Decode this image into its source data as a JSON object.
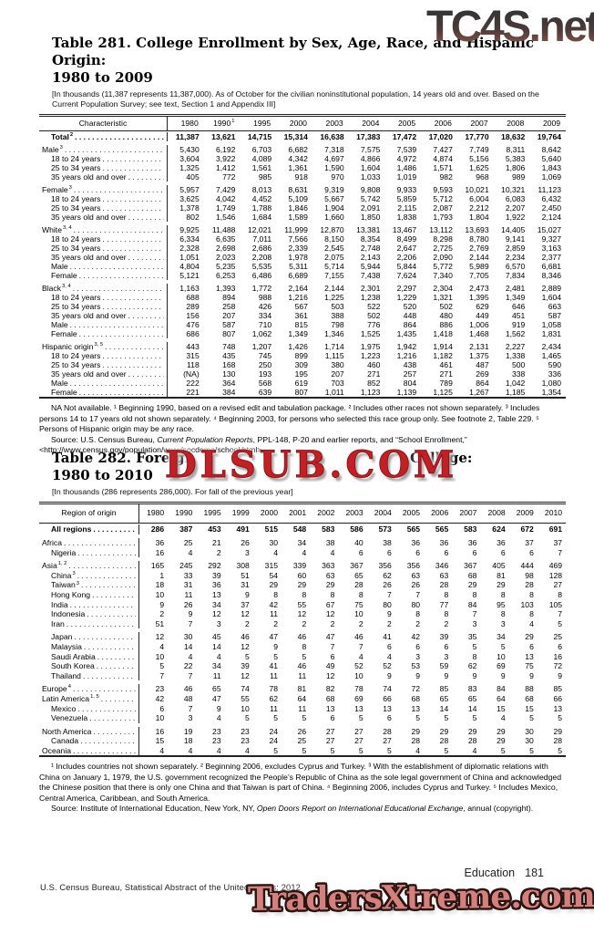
{
  "watermarks": {
    "top": "TC4S.net",
    "middle": "DLSUB.COM",
    "bottom": "TradersXtreme.com"
  },
  "footer": {
    "page_label": "Education",
    "page_number": "181",
    "source_line": "U.S. Census Bureau, Statistical Abstract of the United States: 2012"
  },
  "table281": {
    "title_line1": "Table 281. College Enrollment by Sex, Age, Race, and Hispanic Origin:",
    "title_line2": "1980 to 2009",
    "note": "[In thousands (11,387 represents 11,387,000). As of October for the civilian noninstitutional population, 14 years old and over. Based on the Current Population Survey; see text, Section 1 and Appendix III]",
    "header_label": "Characteristic",
    "years": [
      {
        "label": "1980"
      },
      {
        "label": "1990",
        "sup": "1"
      },
      {
        "label": "1995"
      },
      {
        "label": "2000"
      },
      {
        "label": "2003"
      },
      {
        "label": "2004"
      },
      {
        "label": "2005"
      },
      {
        "label": "2006"
      },
      {
        "label": "2007"
      },
      {
        "label": "2008"
      },
      {
        "label": "2009"
      }
    ],
    "rows": [
      {
        "label": "Total",
        "sup": "2",
        "bold": true,
        "indent": true,
        "values": [
          "11,387",
          "13,621",
          "14,715",
          "15,314",
          "16,638",
          "17,383",
          "17,472",
          "17,020",
          "17,770",
          "18,632",
          "19,764"
        ]
      },
      {
        "label": "Male",
        "sup": "3",
        "gap": true,
        "values": [
          "5,430",
          "6,192",
          "6,703",
          "6,682",
          "7,318",
          "7,575",
          "7,539",
          "7,427",
          "7,749",
          "8,311",
          "8,642"
        ]
      },
      {
        "label": "18 to 24 years",
        "indent": true,
        "values": [
          "3,604",
          "3,922",
          "4,089",
          "4,342",
          "4,697",
          "4,866",
          "4,972",
          "4,874",
          "5,156",
          "5,383",
          "5,640"
        ]
      },
      {
        "label": "25 to 34 years",
        "indent": true,
        "values": [
          "1,325",
          "1,412",
          "1,561",
          "1,361",
          "1,590",
          "1,604",
          "1,486",
          "1,571",
          "1,625",
          "1,806",
          "1,843"
        ]
      },
      {
        "label": "35 years old and over",
        "indent": true,
        "values": [
          "405",
          "772",
          "985",
          "918",
          "970",
          "1,033",
          "1,019",
          "982",
          "968",
          "989",
          "1,069"
        ]
      },
      {
        "label": "Female",
        "sup": "3",
        "gap": true,
        "values": [
          "5,957",
          "7,429",
          "8,013",
          "8,631",
          "9,319",
          "9,808",
          "9,933",
          "9,593",
          "10,021",
          "10,321",
          "11,123"
        ]
      },
      {
        "label": "18 to 24 years",
        "indent": true,
        "values": [
          "3,625",
          "4,042",
          "4,452",
          "5,109",
          "5,667",
          "5,742",
          "5,859",
          "5,712",
          "6,004",
          "6,083",
          "6,432"
        ]
      },
      {
        "label": "25 to 34 years",
        "indent": true,
        "values": [
          "1,378",
          "1,749",
          "1,788",
          "1,846",
          "1,904",
          "2,091",
          "2,115",
          "2,087",
          "2,212",
          "2,207",
          "2,450"
        ]
      },
      {
        "label": "35 years old and over",
        "indent": true,
        "values": [
          "802",
          "1,546",
          "1,684",
          "1,589",
          "1,660",
          "1,850",
          "1,838",
          "1,793",
          "1,804",
          "1,922",
          "2,124"
        ]
      },
      {
        "label": "White",
        "sup": "3, 4",
        "gap": true,
        "values": [
          "9,925",
          "11,488",
          "12,021",
          "11,999",
          "12,870",
          "13,381",
          "13,467",
          "13,112",
          "13,693",
          "14,405",
          "15,027"
        ]
      },
      {
        "label": "18 to 24 years",
        "indent": true,
        "values": [
          "6,334",
          "6,635",
          "7,011",
          "7,566",
          "8,150",
          "8,354",
          "8,499",
          "8,298",
          "8,780",
          "9,141",
          "9,327"
        ]
      },
      {
        "label": "25 to 34 years",
        "indent": true,
        "values": [
          "2,328",
          "2,698",
          "2,686",
          "2,339",
          "2,545",
          "2,748",
          "2,647",
          "2,725",
          "2,769",
          "2,859",
          "3,163"
        ]
      },
      {
        "label": "35 years old and over",
        "indent": true,
        "values": [
          "1,051",
          "2,023",
          "2,208",
          "1,978",
          "2,075",
          "2,143",
          "2,206",
          "2,090",
          "2,144",
          "2,234",
          "2,377"
        ]
      },
      {
        "label": "Male",
        "indent": true,
        "values": [
          "4,804",
          "5,235",
          "5,535",
          "5,311",
          "5,714",
          "5,944",
          "5,844",
          "5,772",
          "5,989",
          "6,570",
          "6,681"
        ]
      },
      {
        "label": "Female",
        "indent": true,
        "values": [
          "5,121",
          "6,253",
          "6,486",
          "6,689",
          "7,155",
          "7,438",
          "7,624",
          "7,340",
          "7,705",
          "7,834",
          "8,346"
        ]
      },
      {
        "label": "Black",
        "sup": "3, 4",
        "gap": true,
        "values": [
          "1,163",
          "1,393",
          "1,772",
          "2,164",
          "2,144",
          "2,301",
          "2,297",
          "2,304",
          "2,473",
          "2,481",
          "2,889"
        ]
      },
      {
        "label": "18 to 24 years",
        "indent": true,
        "values": [
          "688",
          "894",
          "988",
          "1,216",
          "1,225",
          "1,238",
          "1,229",
          "1,321",
          "1,395",
          "1,349",
          "1,604"
        ]
      },
      {
        "label": "25 to 34 years",
        "indent": true,
        "values": [
          "289",
          "258",
          "426",
          "567",
          "503",
          "522",
          "520",
          "502",
          "629",
          "646",
          "663"
        ]
      },
      {
        "label": "35 years old and over",
        "indent": true,
        "values": [
          "156",
          "207",
          "334",
          "361",
          "388",
          "502",
          "448",
          "480",
          "449",
          "451",
          "587"
        ]
      },
      {
        "label": "Male",
        "indent": true,
        "values": [
          "476",
          "587",
          "710",
          "815",
          "798",
          "776",
          "864",
          "886",
          "1,006",
          "919",
          "1,058"
        ]
      },
      {
        "label": "Female",
        "indent": true,
        "values": [
          "686",
          "807",
          "1,062",
          "1,349",
          "1,346",
          "1,525",
          "1,435",
          "1,418",
          "1,468",
          "1,562",
          "1,831"
        ]
      },
      {
        "label": "Hispanic origin",
        "sup": "3, 5",
        "gap": true,
        "values": [
          "443",
          "748",
          "1,207",
          "1,426",
          "1,714",
          "1,975",
          "1,942",
          "1,914",
          "2,131",
          "2,227",
          "2,434"
        ]
      },
      {
        "label": "18 to 24 years",
        "indent": true,
        "values": [
          "315",
          "435",
          "745",
          "899",
          "1,115",
          "1,223",
          "1,216",
          "1,182",
          "1,375",
          "1,338",
          "1,465"
        ]
      },
      {
        "label": "25 to 34 years",
        "indent": true,
        "values": [
          "118",
          "168",
          "250",
          "309",
          "380",
          "460",
          "438",
          "461",
          "487",
          "500",
          "590"
        ]
      },
      {
        "label": "35 years old and over",
        "indent": true,
        "values": [
          "(NA)",
          "130",
          "193",
          "195",
          "207",
          "271",
          "257",
          "271",
          "269",
          "338",
          "336"
        ]
      },
      {
        "label": "Male",
        "indent": true,
        "values": [
          "222",
          "364",
          "568",
          "619",
          "703",
          "852",
          "804",
          "789",
          "864",
          "1,042",
          "1,080"
        ]
      },
      {
        "label": "Female",
        "indent": true,
        "values": [
          "221",
          "384",
          "639",
          "807",
          "1,011",
          "1,123",
          "1,139",
          "1,125",
          "1,267",
          "1,185",
          "1,354"
        ]
      }
    ],
    "footnote": "NA Not available. ¹ Beginning 1990, based on a revised edit and tabulation package. ² Includes other races not shown separately. ³ Includes persons 14 to 17 years old not shown separately. ⁴ Beginning 2003, for persons who selected this race group only. See footnote 2, Table 229. ⁵ Persons of Hispanic origin may be any race.",
    "source_pre": "Source: U.S. Census Bureau, ",
    "source_italic": "Current Population Reports",
    "source_post": ", PPL-148, P-20 and earlier reports, and “School Enrollment,” <http://www.census.gov/population/www/socdemo/school.html>."
  },
  "table282": {
    "title_line1_left": "Table 282. Foreign",
    "title_line1_right": "College:",
    "title_line2": "1980 to 2010",
    "note": "[In thousands (286 represents 286,000). For fall of the previous year]",
    "header_label": "Region of origin",
    "years": [
      {
        "label": "1980"
      },
      {
        "label": "1990"
      },
      {
        "label": "1995"
      },
      {
        "label": "1999"
      },
      {
        "label": "2000"
      },
      {
        "label": "2001"
      },
      {
        "label": "2002"
      },
      {
        "label": "2003"
      },
      {
        "label": "2004"
      },
      {
        "label": "2005"
      },
      {
        "label": "2006"
      },
      {
        "label": "2007"
      },
      {
        "label": "2008"
      },
      {
        "label": "2009"
      },
      {
        "label": "2010"
      }
    ],
    "rows": [
      {
        "label": "All regions",
        "bold": true,
        "indent": true,
        "values": [
          "286",
          "387",
          "453",
          "491",
          "515",
          "548",
          "583",
          "586",
          "573",
          "565",
          "565",
          "583",
          "624",
          "672",
          "691"
        ]
      },
      {
        "label": "Africa",
        "gap": true,
        "values": [
          "36",
          "25",
          "21",
          "26",
          "30",
          "34",
          "38",
          "40",
          "38",
          "36",
          "36",
          "36",
          "36",
          "37",
          "37"
        ]
      },
      {
        "label": "Nigeria",
        "indent": true,
        "values": [
          "16",
          "4",
          "2",
          "3",
          "4",
          "4",
          "4",
          "6",
          "6",
          "6",
          "6",
          "6",
          "6",
          "6",
          "7"
        ]
      },
      {
        "label": "Asia",
        "sup": "1, 2",
        "gap": true,
        "values": [
          "165",
          "245",
          "292",
          "308",
          "315",
          "339",
          "363",
          "367",
          "356",
          "356",
          "346",
          "367",
          "405",
          "444",
          "469"
        ]
      },
      {
        "label": "China",
        "sup": "3",
        "indent": true,
        "values": [
          "1",
          "33",
          "39",
          "51",
          "54",
          "60",
          "63",
          "65",
          "62",
          "63",
          "63",
          "68",
          "81",
          "98",
          "128"
        ]
      },
      {
        "label": "Taiwan",
        "sup": "3",
        "indent": true,
        "values": [
          "18",
          "31",
          "36",
          "31",
          "29",
          "29",
          "29",
          "28",
          "26",
          "26",
          "28",
          "29",
          "29",
          "28",
          "27"
        ]
      },
      {
        "label": "Hong Kong",
        "indent": true,
        "values": [
          "10",
          "11",
          "13",
          "9",
          "8",
          "8",
          "8",
          "8",
          "7",
          "7",
          "8",
          "8",
          "8",
          "8",
          "8"
        ]
      },
      {
        "label": "India",
        "indent": true,
        "values": [
          "9",
          "26",
          "34",
          "37",
          "42",
          "55",
          "67",
          "75",
          "80",
          "80",
          "77",
          "84",
          "95",
          "103",
          "105"
        ]
      },
      {
        "label": "Indonesia",
        "indent": true,
        "values": [
          "2",
          "9",
          "12",
          "12",
          "11",
          "12",
          "12",
          "10",
          "9",
          "8",
          "8",
          "7",
          "8",
          "8",
          "7"
        ]
      },
      {
        "label": "Iran",
        "indent": true,
        "values": [
          "51",
          "7",
          "3",
          "2",
          "2",
          "2",
          "2",
          "2",
          "2",
          "2",
          "2",
          "3",
          "3",
          "4",
          "5"
        ]
      },
      {
        "label": "Japan",
        "indent": true,
        "gap": true,
        "values": [
          "12",
          "30",
          "45",
          "46",
          "47",
          "46",
          "47",
          "46",
          "41",
          "42",
          "39",
          "35",
          "34",
          "29",
          "25"
        ]
      },
      {
        "label": "Malaysia",
        "indent": true,
        "values": [
          "4",
          "14",
          "14",
          "12",
          "9",
          "8",
          "7",
          "7",
          "6",
          "6",
          "6",
          "5",
          "5",
          "6",
          "6"
        ]
      },
      {
        "label": "Saudi Arabia",
        "indent": true,
        "values": [
          "10",
          "4",
          "4",
          "5",
          "5",
          "5",
          "6",
          "4",
          "4",
          "3",
          "3",
          "8",
          "10",
          "13",
          "16"
        ]
      },
      {
        "label": "South Korea",
        "indent": true,
        "values": [
          "5",
          "22",
          "34",
          "39",
          "41",
          "46",
          "49",
          "52",
          "52",
          "53",
          "59",
          "62",
          "69",
          "75",
          "72"
        ]
      },
      {
        "label": "Thailand",
        "indent": true,
        "values": [
          "7",
          "7",
          "11",
          "12",
          "11",
          "11",
          "12",
          "10",
          "9",
          "9",
          "9",
          "9",
          "9",
          "9",
          "9"
        ]
      },
      {
        "label": "Europe",
        "sup": "4",
        "gap": true,
        "values": [
          "23",
          "46",
          "65",
          "74",
          "78",
          "81",
          "82",
          "78",
          "74",
          "72",
          "85",
          "83",
          "84",
          "88",
          "85"
        ]
      },
      {
        "label": "Latin America",
        "sup": "1, 5",
        "values": [
          "42",
          "48",
          "47",
          "55",
          "62",
          "64",
          "68",
          "69",
          "66",
          "68",
          "65",
          "65",
          "64",
          "68",
          "66"
        ]
      },
      {
        "label": "Mexico",
        "indent": true,
        "values": [
          "6",
          "7",
          "9",
          "10",
          "11",
          "11",
          "13",
          "13",
          "13",
          "13",
          "14",
          "14",
          "15",
          "15",
          "13"
        ]
      },
      {
        "label": "Venezuela",
        "indent": true,
        "values": [
          "10",
          "3",
          "4",
          "5",
          "5",
          "5",
          "6",
          "5",
          "6",
          "5",
          "5",
          "5",
          "4",
          "5",
          "5"
        ]
      },
      {
        "label": "North America",
        "gap": true,
        "values": [
          "16",
          "19",
          "23",
          "23",
          "24",
          "26",
          "27",
          "27",
          "28",
          "29",
          "29",
          "29",
          "29",
          "30",
          "29"
        ]
      },
      {
        "label": "Canada",
        "indent": true,
        "values": [
          "15",
          "18",
          "23",
          "23",
          "24",
          "25",
          "27",
          "27",
          "27",
          "28",
          "28",
          "28",
          "29",
          "30",
          "28"
        ]
      },
      {
        "label": "Oceania",
        "values": [
          "4",
          "4",
          "4",
          "4",
          "5",
          "5",
          "5",
          "5",
          "5",
          "4",
          "5",
          "4",
          "5",
          "5",
          "5"
        ]
      }
    ],
    "footnote": "¹ Includes countries not shown separately. ² Beginning 2006, excludes Cyprus and Turkey. ³ With the establishment of diplomatic relations with China on January 1, 1979, the U.S. government recognized the People’s Republic of China as the sole legal government of China and acknowledged the Chinese position that there is only one China and that Taiwan is part of China. ⁴ Beginning 2006, includes Cyprus and Turkey. ⁵ Includes Mexico, Central America, Caribbean, and South America.",
    "source_pre": "Source: Institute of International Education, New York, NY, ",
    "source_italic": "Open Doors Report on International Educational Exchange",
    "source_post": ", annual (copyright)."
  }
}
